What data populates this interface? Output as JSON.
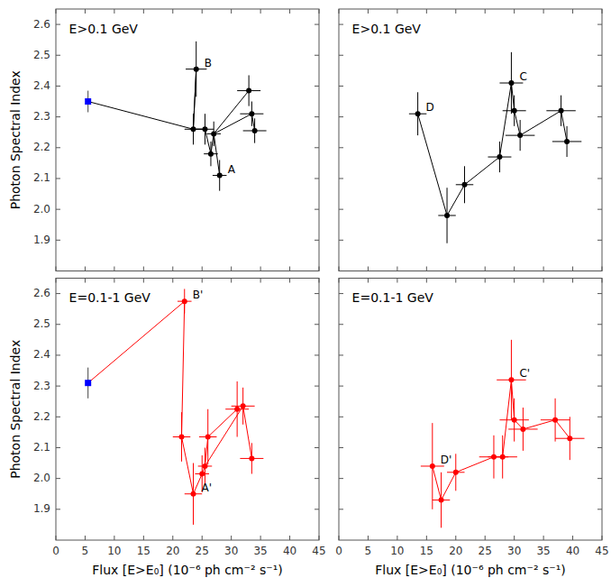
{
  "chart_data": [
    {
      "type": "scatter",
      "title": "E>0.1 GeV",
      "ylabel": "Photon Spectral Index",
      "tick_labels": "y",
      "xlim": [
        0,
        45
      ],
      "ylim": [
        1.8,
        2.65
      ],
      "xticks": [
        0,
        5,
        10,
        15,
        20,
        25,
        30,
        35,
        40,
        45
      ],
      "yticks": [
        1.9,
        {
          "value": 2.0,
          "label": "2.0"
        },
        2.1,
        2.2,
        2.3,
        2.4,
        2.5,
        2.6
      ],
      "series": [
        {
          "color": "black",
          "marker": "circle",
          "x": [
            23.5,
            24.0,
            25.5,
            26.5,
            27.0,
            28.0,
            33.0,
            33.5,
            34.0
          ],
          "values": [
            2.26,
            2.455,
            2.26,
            2.18,
            2.245,
            2.11,
            2.385,
            2.31,
            2.255
          ],
          "xerr": [
            1.5,
            1.8,
            1.5,
            1.2,
            1.2,
            1.2,
            2.0,
            2.0,
            2.0
          ],
          "yerr": [
            0.05,
            0.09,
            0.05,
            0.04,
            0.04,
            0.05,
            0.05,
            0.04,
            0.04
          ],
          "point_labels": [
            null,
            "B",
            null,
            null,
            null,
            "A",
            null,
            null,
            null
          ],
          "connections": [
            [
              0,
              1,
              0,
              2,
              3,
              4,
              5
            ],
            [
              4,
              6
            ],
            [
              4,
              7,
              8
            ]
          ]
        },
        {
          "color": "blue",
          "marker": "square",
          "x": [
            5.5
          ],
          "values": [
            2.35
          ],
          "xerr": [
            0.4
          ],
          "yerr": [
            0.035
          ],
          "connect_to": 0
        }
      ]
    },
    {
      "type": "scatter",
      "title": "E>0.1 GeV",
      "tick_labels": false,
      "xlim": [
        0,
        45
      ],
      "ylim": [
        1.8,
        2.65
      ],
      "xticks": [
        0,
        5,
        10,
        15,
        20,
        25,
        30,
        35,
        40,
        45
      ],
      "yticks": [
        1.9,
        {
          "value": 2.0,
          "label": "2.0"
        },
        2.1,
        2.2,
        2.3,
        2.4,
        2.5,
        2.6
      ],
      "series": [
        {
          "color": "black",
          "marker": "circle",
          "x": [
            13.5,
            18.5,
            21.5,
            27.5,
            29.5,
            30.0,
            31.0,
            38.0,
            39.0
          ],
          "values": [
            2.31,
            1.98,
            2.08,
            2.17,
            2.41,
            2.32,
            2.24,
            2.32,
            2.22
          ],
          "xerr": [
            1.5,
            1.5,
            1.5,
            2.0,
            2.0,
            2.0,
            2.5,
            2.5,
            2.5
          ],
          "yerr": [
            0.07,
            0.09,
            0.06,
            0.05,
            0.1,
            0.05,
            0.05,
            0.05,
            0.05
          ],
          "point_labels": [
            "D",
            null,
            null,
            null,
            "C",
            null,
            null,
            null,
            null
          ],
          "connections": [
            [
              0,
              1,
              2,
              3,
              4,
              5,
              6,
              7,
              8
            ]
          ]
        }
      ]
    },
    {
      "type": "scatter",
      "title": "E=0.1-1 GeV",
      "xlabel": "Flux [E>E₀] (10⁻⁶ ph cm⁻² s⁻¹)",
      "ylabel": "Photon Spectral Index",
      "tick_labels": true,
      "xlim": [
        0,
        45
      ],
      "ylim": [
        1.8,
        2.65
      ],
      "xticks": [
        0,
        5,
        10,
        15,
        20,
        25,
        30,
        35,
        40,
        45
      ],
      "yticks": [
        1.9,
        {
          "value": 2.0,
          "label": "2.0"
        },
        2.1,
        2.2,
        2.3,
        2.4,
        2.5,
        2.6
      ],
      "series": [
        {
          "color": "red",
          "marker": "circle",
          "x": [
            22.0,
            21.5,
            23.5,
            25.0,
            25.5,
            26.0,
            31.0,
            32.0,
            33.5
          ],
          "values": [
            2.575,
            2.135,
            1.95,
            2.015,
            2.04,
            2.135,
            2.225,
            2.235,
            2.065
          ],
          "xerr": [
            1.2,
            1.5,
            1.5,
            1.2,
            1.2,
            1.5,
            2.0,
            2.0,
            2.0
          ],
          "yerr": [
            0.04,
            0.08,
            0.1,
            0.06,
            0.06,
            0.09,
            0.09,
            0.06,
            0.05
          ],
          "point_labels": [
            "B'",
            null,
            "A'",
            null,
            null,
            null,
            null,
            null,
            null
          ],
          "connections": [
            [
              0,
              1,
              2,
              3,
              4,
              5
            ],
            [
              5,
              6
            ],
            [
              4,
              7,
              8
            ]
          ]
        },
        {
          "color": "blue",
          "marker": "square",
          "x": [
            5.5
          ],
          "values": [
            2.31
          ],
          "xerr": [
            0.4
          ],
          "yerr": [
            0.05
          ],
          "connect_to": 0
        }
      ]
    },
    {
      "type": "scatter",
      "title": "E=0.1-1 GeV",
      "xlabel": "Flux [E>E₀] (10⁻⁶ ph cm⁻² s⁻¹)",
      "tick_labels": "x",
      "xlim": [
        0,
        45
      ],
      "ylim": [
        1.8,
        2.65
      ],
      "xticks": [
        0,
        5,
        10,
        15,
        20,
        25,
        30,
        35,
        40,
        45
      ],
      "yticks": [
        1.9,
        {
          "value": 2.0,
          "label": "2.0"
        },
        2.1,
        2.2,
        2.3,
        2.4,
        2.5,
        2.6
      ],
      "series": [
        {
          "color": "red",
          "marker": "circle",
          "x": [
            16.0,
            17.5,
            20.0,
            26.5,
            28.0,
            29.5,
            30.0,
            31.5,
            37.0,
            39.5
          ],
          "values": [
            2.04,
            1.93,
            2.02,
            2.07,
            2.07,
            2.32,
            2.19,
            2.16,
            2.19,
            2.13
          ],
          "xerr": [
            2.0,
            1.5,
            1.5,
            2.5,
            2.5,
            2.5,
            2.5,
            2.5,
            2.5,
            2.5
          ],
          "yerr": [
            0.14,
            0.09,
            0.06,
            0.07,
            0.07,
            0.13,
            0.07,
            0.07,
            0.07,
            0.07
          ],
          "point_labels": [
            "D'",
            null,
            null,
            null,
            null,
            "C'",
            null,
            null,
            null,
            null
          ],
          "connections": [
            [
              0,
              1,
              2,
              3,
              4,
              5,
              6,
              7,
              8,
              9
            ]
          ]
        }
      ]
    }
  ]
}
